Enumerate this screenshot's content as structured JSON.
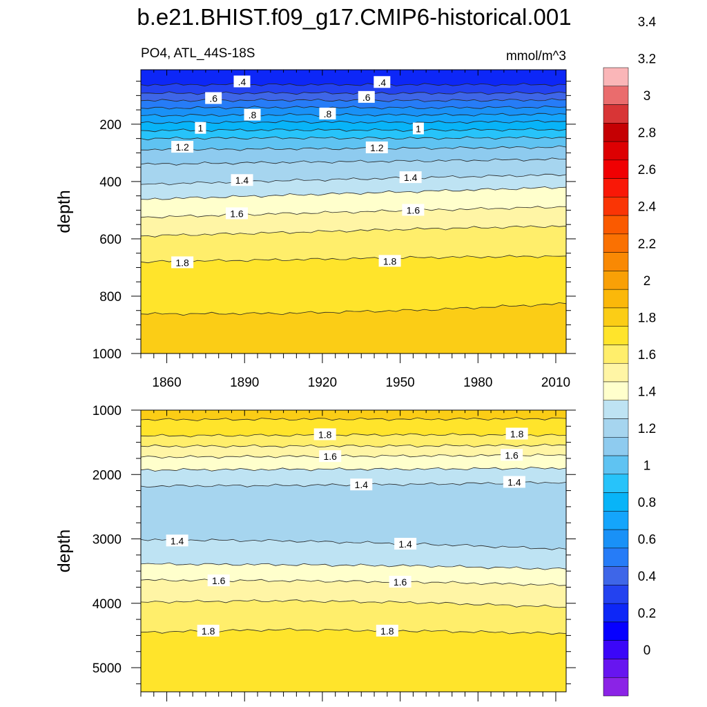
{
  "chart_data": {
    "type": "heatmap",
    "title": "b.e21.BHIST.f09_g17.CMIP6-historical.001",
    "left_string": "PO4, ATL_44S-18S",
    "right_string": "mmol/m^3",
    "x": {
      "min": 1850,
      "max": 2014,
      "ticks": [
        1860,
        1890,
        1920,
        1950,
        1980,
        2010
      ]
    },
    "colorbar": {
      "min": -0.1,
      "step": 0.1,
      "labels": [
        "0",
        "0.2",
        "0.4",
        "0.6",
        "0.8",
        "1",
        "1.2",
        "1.4",
        "1.6",
        "1.8",
        "2",
        "2.2",
        "2.4",
        "2.6",
        "2.8",
        "3",
        "3.2",
        "3.4"
      ],
      "colors": [
        "#8b23e6",
        "#6715f0",
        "#3b06f8",
        "#0600ff",
        "#0d27f7",
        "#2342f0",
        "#3e66e8",
        "#267cf7",
        "#1991f7",
        "#14a5fc",
        "#08b4f8",
        "#27c3fa",
        "#5fc3f2",
        "#8ecbef",
        "#a6d5ef",
        "#bee3f3",
        "#ffffcc",
        "#fff5a5",
        "#ffee6b",
        "#ffe42b",
        "#fbcd16",
        "#fbb80a",
        "#f9a006",
        "#f98904",
        "#fa7102",
        "#fa5a00",
        "#fa3505",
        "#f91807",
        "#f00002",
        "#dd0002",
        "#c50003",
        "#d83536",
        "#ea6c6d",
        "#fab6b8"
      ]
    },
    "panels": [
      {
        "name": "upper",
        "ylabel": "depth",
        "y": {
          "min": 10,
          "max": 1000,
          "ticks": [
            200,
            400,
            600,
            800,
            1000
          ]
        },
        "levels": [
          {
            "value": 0.4,
            "depth": [
              62,
              62,
              62,
              62
            ]
          },
          {
            "value": 0.5,
            "depth": [
              92,
              91,
              92,
              91
            ]
          },
          {
            "value": 0.6,
            "depth": [
              118,
              116,
              118,
              115
            ]
          },
          {
            "value": 0.7,
            "depth": [
              144,
              141,
              143,
              140
            ]
          },
          {
            "value": 0.8,
            "depth": [
              170,
              167,
              168,
              165
            ]
          },
          {
            "value": 0.9,
            "depth": [
              195,
              192,
              194,
              190
            ]
          },
          {
            "value": 1.0,
            "depth": [
              222,
              220,
              221,
              218
            ]
          },
          {
            "value": 1.1,
            "depth": [
              250,
              248,
              249,
              246
            ]
          },
          {
            "value": 1.2,
            "depth": [
              290,
              286,
              284,
              280
            ]
          },
          {
            "value": 1.3,
            "depth": [
              340,
              333,
              328,
              322
            ]
          },
          {
            "value": 1.4,
            "depth": [
              410,
              397,
              386,
              376
            ]
          },
          {
            "value": 1.5,
            "depth": [
              462,
              448,
              434,
              420
            ]
          },
          {
            "value": 1.6,
            "depth": [
              525,
              512,
              500,
              488
            ]
          },
          {
            "value": 1.7,
            "depth": [
              590,
              578,
              565,
              555
            ]
          },
          {
            "value": 1.8,
            "depth": [
              680,
              673,
              665,
              660
            ]
          },
          {
            "value": 1.9,
            "depth": [
              862,
              860,
              848,
              826
            ]
          }
        ],
        "labels": [
          {
            "text": ".4",
            "year": 1889,
            "depth": 52
          },
          {
            "text": ".4",
            "year": 1943,
            "depth": 54
          },
          {
            "text": ".6",
            "year": 1878,
            "depth": 110
          },
          {
            "text": ".6",
            "year": 1937,
            "depth": 106
          },
          {
            "text": ".8",
            "year": 1893,
            "depth": 168
          },
          {
            "text": ".8",
            "year": 1922,
            "depth": 164
          },
          {
            "text": "1",
            "year": 1873,
            "depth": 214
          },
          {
            "text": "1",
            "year": 1957,
            "depth": 216
          },
          {
            "text": "1.2",
            "year": 1866,
            "depth": 280
          },
          {
            "text": "1.2",
            "year": 1941,
            "depth": 282
          },
          {
            "text": "1.4",
            "year": 1889,
            "depth": 396
          },
          {
            "text": "1.4",
            "year": 1954,
            "depth": 386
          },
          {
            "text": "1.6",
            "year": 1887,
            "depth": 512
          },
          {
            "text": "1.6",
            "year": 1955,
            "depth": 500
          },
          {
            "text": "1.8",
            "year": 1866,
            "depth": 683
          },
          {
            "text": "1.8",
            "year": 1946,
            "depth": 678
          }
        ]
      },
      {
        "name": "lower",
        "ylabel": "depth",
        "y": {
          "min": 1000,
          "max": 5375,
          "ticks": [
            1000,
            2000,
            3000,
            4000,
            5000
          ]
        },
        "levels": [
          {
            "value": 1.9,
            "depth": [
              1150,
              1140,
              1140,
              1130
            ]
          },
          {
            "value": 1.8,
            "depth": [
              1400,
              1390,
              1380,
              1390
            ]
          },
          {
            "value": 1.7,
            "depth": [
              1560,
              1560,
              1555,
              1545
            ]
          },
          {
            "value": 1.6,
            "depth": [
              1730,
              1720,
              1710,
              1700
            ]
          },
          {
            "value": 1.5,
            "depth": [
              1930,
              1920,
              1915,
              1900
            ]
          },
          {
            "value": 1.4,
            "depth": [
              2180,
              2170,
              2150,
              2120
            ]
          },
          {
            "value": 1.4,
            "depth": [
              3010,
              3030,
              3080,
              3160
            ]
          },
          {
            "value": 1.5,
            "depth": [
              3390,
              3400,
              3420,
              3470
            ]
          },
          {
            "value": 1.6,
            "depth": [
              3640,
              3650,
              3670,
              3720
            ]
          },
          {
            "value": 1.7,
            "depth": [
              3980,
              3960,
              3990,
              4060
            ]
          },
          {
            "value": 1.8,
            "depth": [
              4450,
              4410,
              4430,
              4470
            ]
          }
        ],
        "fills": [
          1.9,
          1.8,
          1.7,
          1.6,
          1.5,
          1.4,
          1.3,
          1.4,
          1.5,
          1.6,
          1.7,
          1.8
        ],
        "labels": [
          {
            "text": "1.8",
            "year": 1921,
            "depth": 1380
          },
          {
            "text": "1.8",
            "year": 1995,
            "depth": 1370
          },
          {
            "text": "1.6",
            "year": 1923,
            "depth": 1720
          },
          {
            "text": "1.6",
            "year": 1993,
            "depth": 1700
          },
          {
            "text": "1.4",
            "year": 1935,
            "depth": 2160
          },
          {
            "text": "1.4",
            "year": 1994,
            "depth": 2120
          },
          {
            "text": "1.4",
            "year": 1864,
            "depth": 3030
          },
          {
            "text": "1.4",
            "year": 1952,
            "depth": 3080
          },
          {
            "text": "1.6",
            "year": 1880,
            "depth": 3650
          },
          {
            "text": "1.6",
            "year": 1950,
            "depth": 3670
          },
          {
            "text": "1.8",
            "year": 1876,
            "depth": 4430
          },
          {
            "text": "1.8",
            "year": 1945,
            "depth": 4430
          }
        ]
      }
    ]
  }
}
